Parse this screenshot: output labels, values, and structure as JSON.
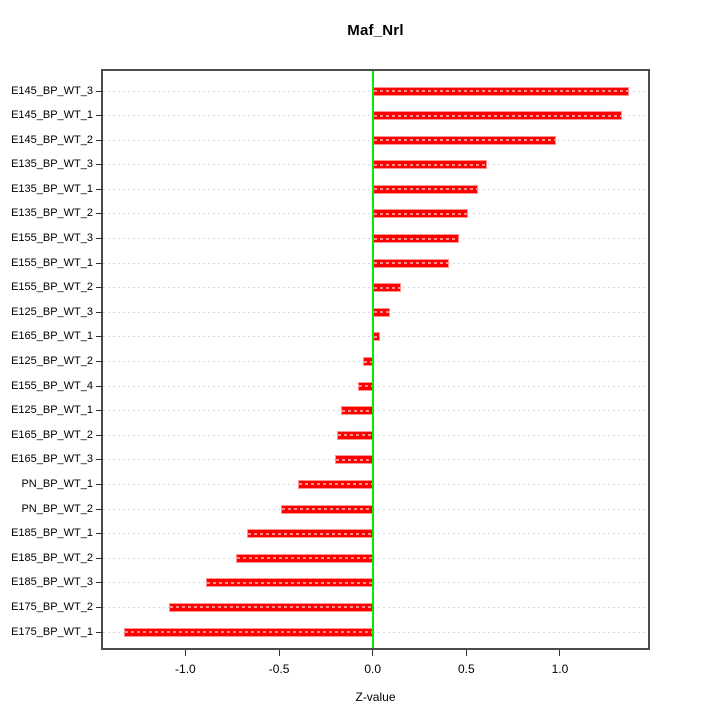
{
  "title": "Maf_Nrl",
  "chart_data": {
    "type": "bar",
    "orientation": "horizontal",
    "title": "Maf_Nrl",
    "xlabel": "Z-value",
    "categories": [
      "E145_BP_WT_3",
      "E145_BP_WT_1",
      "E145_BP_WT_2",
      "E135_BP_WT_3",
      "E135_BP_WT_1",
      "E135_BP_WT_2",
      "E155_BP_WT_3",
      "E155_BP_WT_1",
      "E155_BP_WT_2",
      "E125_BP_WT_3",
      "E165_BP_WT_1",
      "E125_BP_WT_2",
      "E155_BP_WT_4",
      "E125_BP_WT_1",
      "E165_BP_WT_2",
      "E165_BP_WT_3",
      "PN_BP_WT_1",
      "PN_BP_WT_2",
      "E185_BP_WT_1",
      "E185_BP_WT_2",
      "E185_BP_WT_3",
      "E175_BP_WT_2",
      "E175_BP_WT_1"
    ],
    "values": [
      1.37,
      1.33,
      0.98,
      0.61,
      0.56,
      0.51,
      0.46,
      0.41,
      0.15,
      0.09,
      0.04,
      -0.05,
      -0.08,
      -0.17,
      -0.19,
      -0.2,
      -0.4,
      -0.49,
      -0.67,
      -0.73,
      -0.89,
      -1.09,
      -1.33
    ],
    "xticks": [
      -1.0,
      -0.5,
      0.0,
      0.5,
      1.0
    ],
    "xtick_labels": [
      "-1.0",
      "-0.5",
      "0.0",
      "0.5",
      "1.0"
    ],
    "xlim": [
      -1.44,
      1.47
    ],
    "grid": true,
    "legend": false,
    "bar_color": "#ff0000",
    "bar_dash_color": "rgba(255,255,255,0.55)",
    "zero_line_color": "#00ee00",
    "grid_color": "#d9d9d9",
    "axis_color": "#4b4b4b",
    "text_color": "#000000"
  }
}
